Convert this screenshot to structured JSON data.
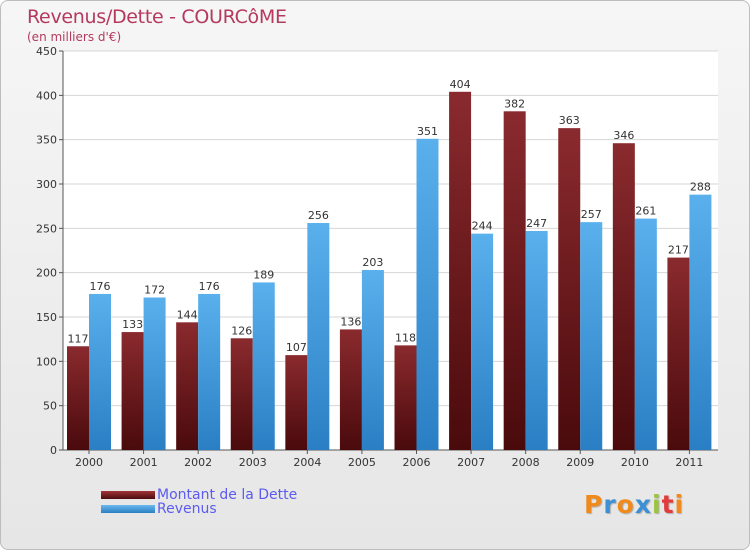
{
  "chart_data": {
    "type": "bar",
    "title": "Revenus/Dette - COURCôME",
    "subtitle": "(en milliers d'€)",
    "categories": [
      "2000",
      "2001",
      "2002",
      "2003",
      "2004",
      "2005",
      "2006",
      "2007",
      "2008",
      "2009",
      "2010",
      "2011"
    ],
    "series": [
      {
        "name": "Montant de la Dette",
        "color": "#7f1f23",
        "values": [
          117,
          133,
          144,
          126,
          107,
          136,
          118,
          404,
          382,
          363,
          346,
          217
        ]
      },
      {
        "name": "Revenus",
        "color": "#3d9de3",
        "values": [
          176,
          172,
          176,
          189,
          256,
          203,
          351,
          244,
          247,
          257,
          261,
          288
        ]
      }
    ],
    "ylim": [
      0,
      450
    ],
    "yticks": [
      0,
      50,
      100,
      150,
      200,
      250,
      300,
      350,
      400,
      450
    ],
    "grid": true,
    "xlabel": "",
    "ylabel": ""
  },
  "legend": {
    "debt_label": "Montant de la Dette",
    "revenue_label": "Revenus"
  },
  "logo": {
    "letters": [
      "P",
      "r",
      "o",
      "x",
      "i",
      "t",
      "i"
    ],
    "colors": [
      "#f08a1d",
      "#3d8fd6",
      "#f08a1d",
      "#3d8fd6",
      "#9ac53d",
      "#e23b3b",
      "#f08a1d"
    ]
  }
}
